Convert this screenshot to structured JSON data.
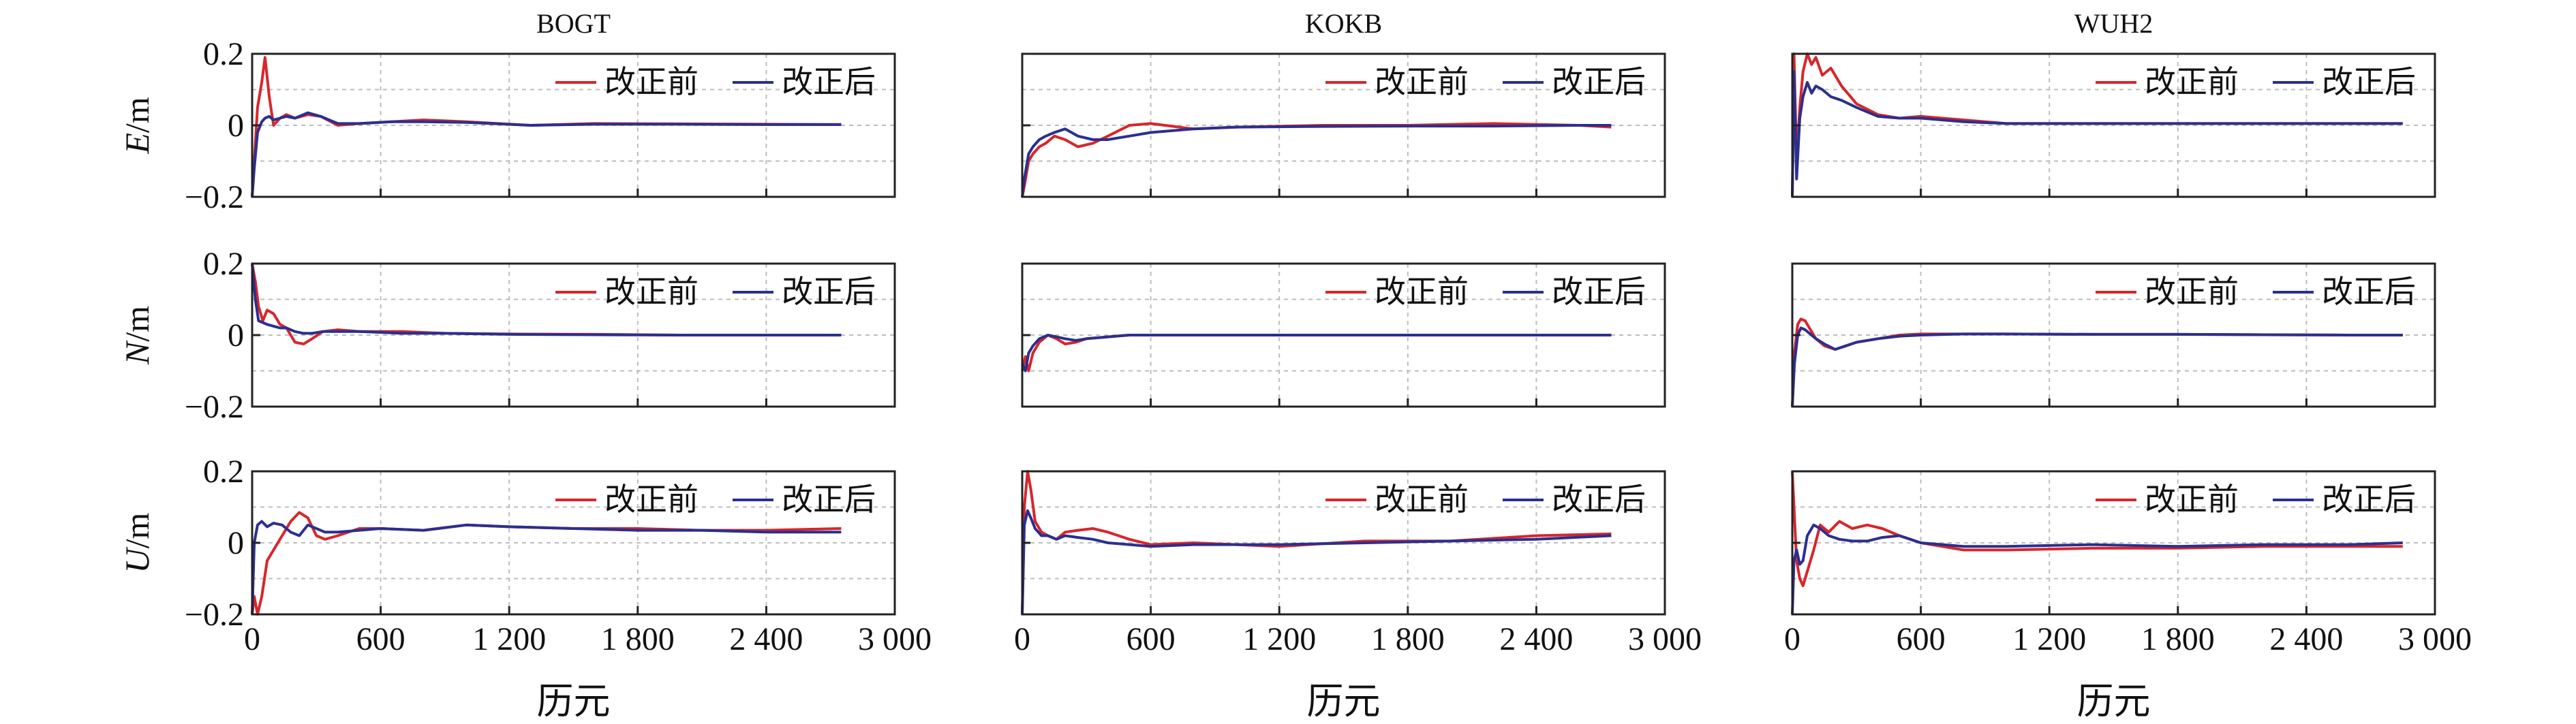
{
  "figure": {
    "xlabel": "历元",
    "ylabels": [
      "E/m",
      "N/m",
      "U/m"
    ],
    "legend": {
      "before": "改正前",
      "after": "改正后"
    },
    "colors": {
      "before": "#d7262b",
      "after": "#2b2f8f",
      "grid": "#bdbdbd",
      "axis": "#222222"
    }
  },
  "chart_data": {
    "type": "line",
    "layout": "3 rows x 3 columns (rows: E, N, U; columns: stations)",
    "stations": [
      "BOGT",
      "KOKB",
      "WUH2"
    ],
    "components": [
      "E",
      "N",
      "U"
    ],
    "xlabel": "历元",
    "ylabels": {
      "E": "E/m",
      "N": "N/m",
      "U": "U/m"
    },
    "xlim": [
      0,
      3000
    ],
    "ylim": [
      -0.2,
      0.2
    ],
    "xticks": [
      0,
      600,
      1200,
      1800,
      2400,
      3000
    ],
    "xtick_labels": [
      "0",
      "600",
      "1 200",
      "1 800",
      "2 400",
      "3 000"
    ],
    "yticks": [
      -0.2,
      0,
      0.2
    ],
    "ytick_labels": [
      "−0.2",
      "0",
      "0.2"
    ],
    "legend": [
      "改正前",
      "改正后"
    ],
    "panels": [
      {
        "station": "BOGT",
        "component": "E",
        "series": [
          {
            "name": "改正前",
            "x": [
              0,
              10,
              25,
              45,
              60,
              80,
              100,
              130,
              160,
              200,
              260,
              320,
              400,
              500,
              650,
              800,
              1000,
              1300,
              1600,
              2000,
              2400,
              2750
            ],
            "y": [
              -0.2,
              -0.1,
              0.05,
              0.12,
              0.19,
              0.08,
              0.0,
              0.02,
              0.03,
              0.02,
              0.03,
              0.025,
              0.0,
              0.005,
              0.01,
              0.015,
              0.01,
              0.0,
              0.005,
              0.004,
              0.003,
              0.002
            ]
          },
          {
            "name": "改正后",
            "x": [
              0,
              10,
              25,
              45,
              60,
              80,
              100,
              130,
              160,
              200,
              260,
              320,
              400,
              500,
              650,
              800,
              1000,
              1300,
              1600,
              2000,
              2400,
              2750
            ],
            "y": [
              -0.2,
              -0.12,
              -0.02,
              0.01,
              0.02,
              0.025,
              0.015,
              0.02,
              0.025,
              0.02,
              0.035,
              0.025,
              0.005,
              0.005,
              0.01,
              0.01,
              0.008,
              0.0,
              0.003,
              0.003,
              0.002,
              0.002
            ]
          }
        ]
      },
      {
        "station": "KOKB",
        "component": "E",
        "series": [
          {
            "name": "改正前",
            "x": [
              0,
              10,
              30,
              50,
              80,
              110,
              150,
              200,
              260,
              330,
              400,
              500,
              600,
              800,
              1000,
              1400,
              1800,
              2200,
              2600,
              2750
            ],
            "y": [
              -0.2,
              -0.17,
              -0.1,
              -0.08,
              -0.06,
              -0.05,
              -0.03,
              -0.04,
              -0.06,
              -0.05,
              -0.03,
              0.0,
              0.005,
              -0.01,
              -0.005,
              0.0,
              0.0,
              0.005,
              0.0,
              -0.005
            ]
          },
          {
            "name": "改正后",
            "x": [
              0,
              10,
              30,
              50,
              80,
              110,
              150,
              200,
              260,
              330,
              400,
              500,
              600,
              800,
              1000,
              1400,
              1800,
              2200,
              2600,
              2750
            ],
            "y": [
              -0.2,
              -0.15,
              -0.08,
              -0.06,
              -0.04,
              -0.03,
              -0.02,
              -0.01,
              -0.03,
              -0.04,
              -0.04,
              -0.03,
              -0.02,
              -0.01,
              -0.005,
              -0.003,
              -0.002,
              -0.002,
              0.0,
              0.0
            ]
          }
        ]
      },
      {
        "station": "WUH2",
        "component": "E",
        "series": [
          {
            "name": "改正前",
            "x": [
              0,
              8,
              20,
              35,
              50,
              70,
              90,
              110,
              140,
              180,
              230,
              300,
              400,
              500,
              600,
              800,
              1000,
              1400,
              1800,
              2200,
              2600,
              2850
            ],
            "y": [
              -0.2,
              0.2,
              -0.1,
              0.05,
              0.15,
              0.2,
              0.17,
              0.19,
              0.14,
              0.16,
              0.11,
              0.06,
              0.03,
              0.02,
              0.025,
              0.015,
              0.005,
              0.005,
              0.005,
              0.005,
              0.005,
              0.005
            ]
          },
          {
            "name": "改正后",
            "x": [
              0,
              8,
              20,
              35,
              50,
              70,
              90,
              110,
              140,
              180,
              230,
              300,
              400,
              500,
              600,
              800,
              1000,
              1400,
              1800,
              2200,
              2600,
              2850
            ],
            "y": [
              -0.2,
              0.15,
              -0.15,
              0.02,
              0.08,
              0.12,
              0.09,
              0.11,
              0.1,
              0.08,
              0.07,
              0.05,
              0.025,
              0.02,
              0.02,
              0.01,
              0.005,
              0.005,
              0.005,
              0.005,
              0.005,
              0.005
            ]
          }
        ]
      },
      {
        "station": "BOGT",
        "component": "N",
        "series": [
          {
            "name": "改正前",
            "x": [
              0,
              15,
              30,
              50,
              70,
              100,
              130,
              160,
              200,
              240,
              280,
              330,
              400,
              500,
              700,
              900,
              1200,
              1600,
              2000,
              2400,
              2750
            ],
            "y": [
              0.2,
              0.15,
              0.08,
              0.04,
              0.07,
              0.06,
              0.03,
              0.02,
              -0.02,
              -0.025,
              -0.01,
              0.01,
              0.015,
              0.01,
              0.01,
              0.005,
              0.003,
              0.002,
              0.0,
              0.0,
              0.0
            ]
          },
          {
            "name": "改正后",
            "x": [
              0,
              15,
              30,
              50,
              70,
              100,
              130,
              160,
              200,
              240,
              280,
              330,
              400,
              500,
              700,
              900,
              1200,
              1600,
              2000,
              2400,
              2750
            ],
            "y": [
              0.2,
              0.1,
              0.04,
              0.035,
              0.03,
              0.025,
              0.02,
              0.02,
              0.01,
              0.005,
              0.005,
              0.01,
              0.01,
              0.01,
              0.005,
              0.005,
              0.002,
              0.001,
              0.0,
              0.0,
              0.0
            ]
          }
        ]
      },
      {
        "station": "KOKB",
        "component": "N",
        "series": [
          {
            "name": "改正前",
            "x": [
              0,
              15,
              30,
              50,
              80,
              120,
              160,
              200,
              250,
              300,
              400,
              500,
              700,
              1000,
              1400,
              1800,
              2200,
              2600,
              2750
            ],
            "y": [
              -0.1,
              -0.06,
              -0.1,
              -0.05,
              -0.02,
              0.0,
              -0.01,
              -0.025,
              -0.02,
              -0.01,
              -0.005,
              0.0,
              0.0,
              0.0,
              0.0,
              0.0,
              0.0,
              0.0,
              0.0
            ]
          },
          {
            "name": "改正后",
            "x": [
              0,
              15,
              30,
              50,
              80,
              120,
              160,
              200,
              250,
              300,
              400,
              500,
              700,
              1000,
              1400,
              1800,
              2200,
              2600,
              2750
            ],
            "y": [
              -0.08,
              -0.1,
              -0.05,
              -0.03,
              -0.01,
              0.0,
              -0.005,
              -0.01,
              -0.015,
              -0.01,
              -0.005,
              0.0,
              0.0,
              0.0,
              0.0,
              0.0,
              0.0,
              0.0,
              0.0
            ]
          }
        ]
      },
      {
        "station": "WUH2",
        "component": "N",
        "series": [
          {
            "name": "改正前",
            "x": [
              0,
              10,
              25,
              40,
              60,
              80,
              110,
              150,
              200,
              250,
              300,
              400,
              500,
              600,
              800,
              1000,
              1400,
              1800,
              2200,
              2600,
              2850
            ],
            "y": [
              -0.2,
              -0.05,
              0.03,
              0.045,
              0.04,
              0.02,
              -0.01,
              -0.03,
              -0.04,
              -0.03,
              -0.02,
              -0.01,
              0.0,
              0.003,
              0.003,
              0.003,
              0.002,
              0.002,
              0.001,
              0.0,
              0.0
            ]
          },
          {
            "name": "改正后",
            "x": [
              0,
              10,
              25,
              40,
              60,
              80,
              110,
              150,
              200,
              250,
              300,
              400,
              500,
              600,
              800,
              1000,
              1400,
              1800,
              2200,
              2600,
              2850
            ],
            "y": [
              -0.2,
              -0.08,
              0.0,
              0.02,
              0.015,
              0.005,
              -0.01,
              -0.025,
              -0.04,
              -0.03,
              -0.02,
              -0.01,
              -0.003,
              0.0,
              0.003,
              0.003,
              0.002,
              0.002,
              0.001,
              0.0,
              0.0
            ]
          }
        ]
      },
      {
        "station": "BOGT",
        "component": "U",
        "series": [
          {
            "name": "改正前",
            "x": [
              0,
              10,
              25,
              45,
              70,
              100,
              140,
              180,
              220,
              260,
              300,
              340,
              400,
              500,
              600,
              800,
              1000,
              1200,
              1500,
              1800,
              2100,
              2400,
              2750
            ],
            "y": [
              -0.2,
              -0.15,
              -0.2,
              -0.15,
              -0.05,
              -0.02,
              0.02,
              0.06,
              0.085,
              0.07,
              0.02,
              0.01,
              0.02,
              0.04,
              0.04,
              0.035,
              0.05,
              0.045,
              0.04,
              0.04,
              0.035,
              0.035,
              0.04
            ]
          },
          {
            "name": "改正后",
            "x": [
              0,
              10,
              25,
              45,
              70,
              100,
              140,
              180,
              220,
              260,
              300,
              340,
              400,
              500,
              600,
              800,
              1000,
              1200,
              1500,
              1800,
              2100,
              2400,
              2750
            ],
            "y": [
              -0.2,
              0.0,
              0.05,
              0.06,
              0.045,
              0.055,
              0.05,
              0.03,
              0.02,
              0.05,
              0.04,
              0.03,
              0.03,
              0.035,
              0.04,
              0.035,
              0.05,
              0.045,
              0.04,
              0.035,
              0.035,
              0.03,
              0.03
            ]
          }
        ]
      },
      {
        "station": "KOKB",
        "component": "U",
        "series": [
          {
            "name": "改正前",
            "x": [
              0,
              10,
              25,
              40,
              60,
              90,
              120,
              160,
              200,
              260,
              330,
              400,
              500,
              600,
              800,
              1000,
              1200,
              1600,
              2000,
              2400,
              2750
            ],
            "y": [
              -0.2,
              0.1,
              0.2,
              0.15,
              0.06,
              0.03,
              0.02,
              0.01,
              0.03,
              0.035,
              0.04,
              0.03,
              0.01,
              -0.005,
              0.0,
              -0.005,
              -0.01,
              0.005,
              0.005,
              0.02,
              0.025
            ]
          },
          {
            "name": "改正后",
            "x": [
              0,
              10,
              25,
              40,
              60,
              90,
              120,
              160,
              200,
              260,
              330,
              400,
              500,
              600,
              800,
              1000,
              1200,
              1600,
              2000,
              2400,
              2750
            ],
            "y": [
              -0.2,
              0.05,
              0.09,
              0.07,
              0.04,
              0.02,
              0.02,
              0.01,
              0.02,
              0.015,
              0.01,
              0.0,
              -0.005,
              -0.01,
              -0.005,
              -0.005,
              -0.005,
              0.0,
              0.005,
              0.01,
              0.02
            ]
          }
        ]
      },
      {
        "station": "WUH2",
        "component": "U",
        "series": [
          {
            "name": "改正前",
            "x": [
              0,
              8,
              20,
              35,
              50,
              70,
              100,
              130,
              170,
              220,
              280,
              350,
              420,
              500,
              600,
              800,
              1000,
              1400,
              1800,
              2200,
              2600,
              2850
            ],
            "y": [
              0.2,
              0.1,
              -0.05,
              -0.1,
              -0.12,
              -0.08,
              -0.02,
              0.05,
              0.03,
              0.06,
              0.04,
              0.05,
              0.04,
              0.02,
              0.0,
              -0.02,
              -0.02,
              -0.015,
              -0.015,
              -0.01,
              -0.01,
              -0.01
            ]
          },
          {
            "name": "改正后",
            "x": [
              0,
              8,
              20,
              35,
              50,
              70,
              100,
              130,
              170,
              220,
              280,
              350,
              420,
              500,
              600,
              800,
              1000,
              1400,
              1800,
              2200,
              2600,
              2850
            ],
            "y": [
              -0.2,
              -0.05,
              -0.02,
              -0.06,
              -0.05,
              0.02,
              0.05,
              0.04,
              0.02,
              0.01,
              0.005,
              0.005,
              0.015,
              0.02,
              0.0,
              -0.01,
              -0.01,
              -0.005,
              -0.01,
              -0.005,
              -0.005,
              0.0
            ]
          }
        ]
      }
    ]
  }
}
